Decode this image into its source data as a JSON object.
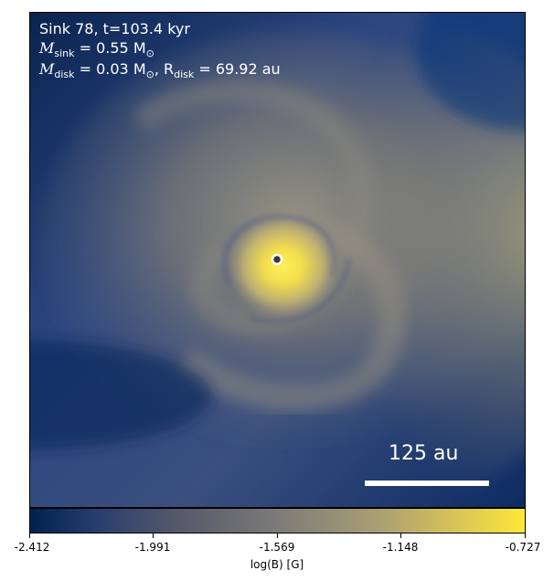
{
  "panel": {
    "sink_line": "Sink 78, t=103.4 kyr",
    "m_sink_symbol": "M",
    "m_sink_sub": "sink",
    "m_sink_value": " = 0.55 M",
    "m_sun_symbol": "⊙",
    "m_disk_symbol": "M",
    "m_disk_sub": "disk",
    "m_disk_value": " = 0.03 M",
    "m_disk_sun": "⊙",
    "r_disk_symbol": ", R",
    "r_disk_sub": "disk",
    "r_disk_value": " = 69.92 au"
  },
  "scalebar": {
    "label": "125 au"
  },
  "colorbar": {
    "label": "log(B) [G]",
    "ticks": [
      "-2.412",
      "-1.991",
      "-1.569",
      "-1.148",
      "-0.727"
    ],
    "colors": {
      "low": "#00224e",
      "mid": "#7c7b78",
      "high": "#fee838"
    }
  },
  "sink_marker": {
    "fill": "#3a3a3a",
    "stroke": "#ffffff"
  }
}
